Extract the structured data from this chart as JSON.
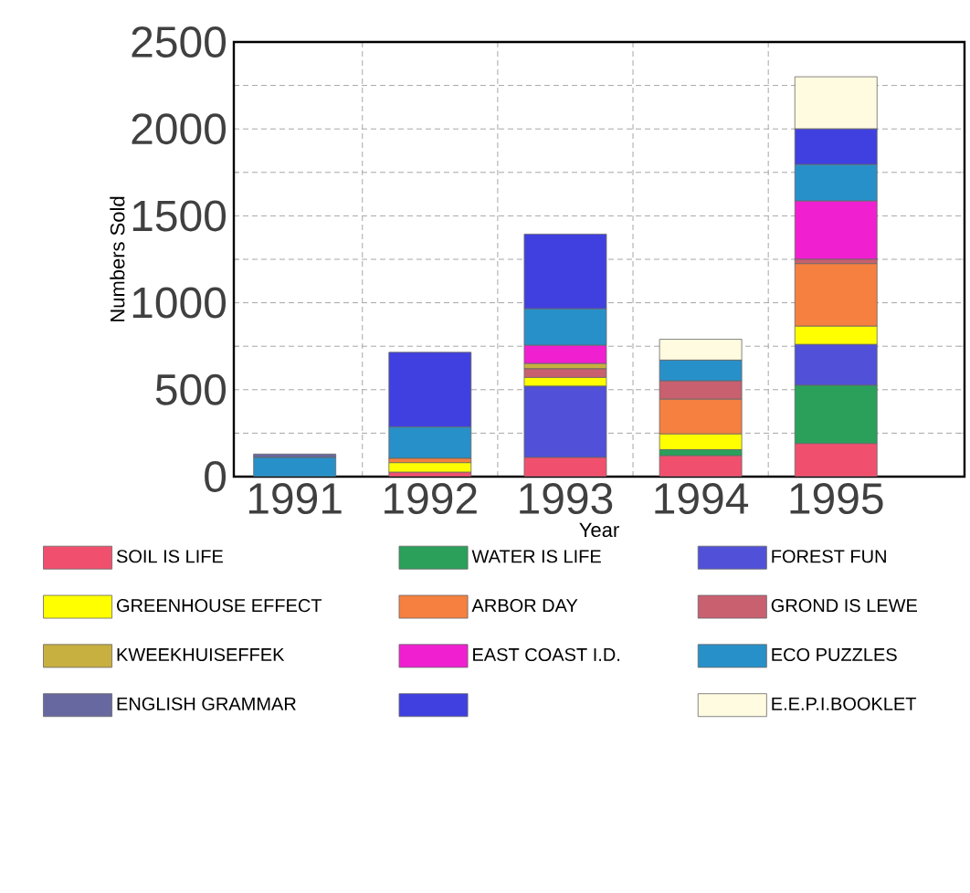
{
  "chart_data": {
    "type": "bar",
    "stacked": true,
    "xlabel": "Year",
    "ylabel": "Numbers Sold",
    "categories": [
      "1991",
      "1992",
      "1993",
      "1994",
      "1995"
    ],
    "ylim": [
      0,
      2500
    ],
    "yticks": [
      0,
      500,
      1000,
      1500,
      2000,
      2500
    ],
    "grid": true,
    "legend": "bottom",
    "series": [
      {
        "name": "SOIL IS LIFE",
        "color": "#f0506e",
        "values": [
          0,
          25,
          110,
          120,
          190
        ]
      },
      {
        "name": "WATER IS LIFE",
        "color": "#2aa05a",
        "values": [
          0,
          0,
          0,
          35,
          335
        ]
      },
      {
        "name": "FOREST FUN",
        "color": "#5050d8",
        "values": [
          0,
          0,
          410,
          0,
          235
        ]
      },
      {
        "name": "GREENHOUSE EFFECT",
        "color": "#ffff00",
        "values": [
          0,
          55,
          50,
          90,
          105
        ]
      },
      {
        "name": "ARBOR DAY",
        "color": "#f58040",
        "values": [
          0,
          25,
          0,
          200,
          360
        ]
      },
      {
        "name": "GROND IS LEWE",
        "color": "#c86070",
        "values": [
          0,
          0,
          50,
          105,
          25
        ]
      },
      {
        "name": "KWEEKHUISEFFEK",
        "color": "#c8b040",
        "values": [
          0,
          0,
          30,
          0,
          0
        ]
      },
      {
        "name": "EAST COAST I.D.",
        "color": "#f020d0",
        "values": [
          0,
          0,
          105,
          0,
          335
        ]
      },
      {
        "name": "ECO PUZZLES",
        "color": "#2890c8",
        "values": [
          110,
          180,
          210,
          120,
          210
        ]
      },
      {
        "name": "ENGLISH GRAMMAR",
        "color": "#6868a0",
        "values": [
          20,
          0,
          0,
          0,
          0
        ]
      },
      {
        "color": "#4040e0",
        "values": [
          0,
          430,
          430,
          0,
          205
        ]
      },
      {
        "name": "E.E.P.I.BOOKLET",
        "color": "#fffbe0",
        "values": [
          0,
          0,
          0,
          120,
          300
        ]
      }
    ]
  }
}
